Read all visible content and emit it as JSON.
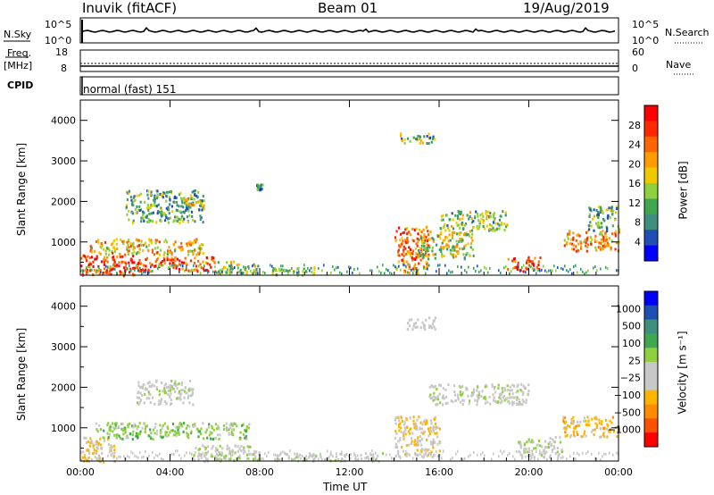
{
  "header": {
    "station": "Inuvik (fitACF)",
    "beam": "Beam 01",
    "date": "19/Aug/2019"
  },
  "nsky_panel": {
    "left_label": "N.Sky",
    "right_label": "N.Search",
    "left_ticks": [
      "10^5",
      "10^0"
    ],
    "right_ticks": [
      "10^5",
      "10^0"
    ]
  },
  "freq_panel": {
    "left_label_1": "Freq.",
    "left_label_2": "[MHz]",
    "right_label": "Nave",
    "left_ticks": [
      "18",
      "8"
    ],
    "right_ticks": [
      "60",
      "0"
    ]
  },
  "cpid_panel": {
    "label": "CPID",
    "mode": "normal (fast) 151"
  },
  "colors": {
    "axis": "#000000",
    "power_scale": [
      "#0000ff",
      "#1f4fb5",
      "#3f8f7f",
      "#3fa74f",
      "#8fd03f",
      "#f0c800",
      "#ff9c00",
      "#ff6400",
      "#ff2800",
      "#ff0000"
    ],
    "velocity_scale": [
      "#ff0000",
      "#ff5000",
      "#ff8c00",
      "#ffb400",
      "#c8c8c8",
      "#c8c8c8",
      "#8fd03f",
      "#3fa74f",
      "#3f8f7f",
      "#1f4fb5",
      "#0000ff"
    ]
  },
  "chart_data": [
    {
      "type": "heatmap",
      "name": "power",
      "ylabel": "Slant Range [km]",
      "yticks": [
        1000,
        2000,
        3000,
        4000
      ],
      "ylim": [
        180,
        4500
      ],
      "xlim": [
        0,
        24
      ],
      "xlabel": "Time UT",
      "xticks": [
        "00:00",
        "04:00",
        "08:00",
        "12:00",
        "16:00",
        "20:00",
        "00:00"
      ],
      "colorbar": {
        "label": "Power [dB]",
        "ticks": [
          "28",
          "24",
          "20",
          "16",
          "12",
          "8",
          "4"
        ],
        "range": [
          0,
          30
        ]
      },
      "blobs": [
        {
          "t": [
            0,
            2.5
          ],
          "r": [
            180,
            700
          ],
          "v": 26
        },
        {
          "t": [
            0.4,
            5.5
          ],
          "r": [
            700,
            1100
          ],
          "v": 18
        },
        {
          "t": [
            2.5,
            6.0
          ],
          "r": [
            300,
            650
          ],
          "v": 24
        },
        {
          "t": [
            6.0,
            8.0
          ],
          "r": [
            250,
            550
          ],
          "v": 14
        },
        {
          "t": [
            2.0,
            5.5
          ],
          "r": [
            1500,
            2300
          ],
          "v": 10
        },
        {
          "t": [
            4.5,
            5.5
          ],
          "r": [
            1900,
            2100
          ],
          "v": 16
        },
        {
          "t": [
            7.8,
            8.1
          ],
          "r": [
            2300,
            2450
          ],
          "v": 8
        },
        {
          "t": [
            8.5,
            10.5
          ],
          "r": [
            200,
            400
          ],
          "v": 12
        },
        {
          "t": [
            14.0,
            15.5
          ],
          "r": [
            250,
            1400
          ],
          "v": 22
        },
        {
          "t": [
            15.0,
            17.5
          ],
          "r": [
            600,
            1300
          ],
          "v": 14
        },
        {
          "t": [
            16.0,
            19.0
          ],
          "r": [
            1300,
            1800
          ],
          "v": 12
        },
        {
          "t": [
            14.2,
            15.8
          ],
          "r": [
            3450,
            3700
          ],
          "v": 12
        },
        {
          "t": [
            19.0,
            20.5
          ],
          "r": [
            300,
            650
          ],
          "v": 26
        },
        {
          "t": [
            21.5,
            24.0
          ],
          "r": [
            800,
            1300
          ],
          "v": 20
        },
        {
          "t": [
            22.5,
            24.0
          ],
          "r": [
            1300,
            1900
          ],
          "v": 10
        }
      ]
    },
    {
      "type": "heatmap",
      "name": "velocity",
      "ylabel": "Slant Range [km]",
      "yticks": [
        1000,
        2000,
        3000,
        4000
      ],
      "ylim": [
        180,
        4500
      ],
      "xlim": [
        0,
        24
      ],
      "xlabel": "Time UT",
      "xticks": [
        "00:00",
        "04:00",
        "08:00",
        "12:00",
        "16:00",
        "20:00",
        "00:00"
      ],
      "colorbar": {
        "label": "Velocity [m s⁻¹]",
        "ticks": [
          "1000",
          "500",
          "100",
          "25",
          "−25",
          "−100",
          "−500",
          "−1000"
        ],
        "range": [
          -1200,
          1200
        ]
      },
      "blobs": [
        {
          "t": [
            0,
            1.5
          ],
          "r": [
            180,
            800
          ],
          "v": -300
        },
        {
          "t": [
            0.5,
            7.5
          ],
          "r": [
            750,
            1150
          ],
          "v": 200
        },
        {
          "t": [
            2.5,
            5.0
          ],
          "r": [
            1600,
            2200
          ],
          "v": 0
        },
        {
          "t": [
            5.0,
            8.0
          ],
          "r": [
            200,
            600
          ],
          "v": 50
        },
        {
          "t": [
            8.5,
            13.5
          ],
          "r": [
            200,
            400
          ],
          "v": 0
        },
        {
          "t": [
            14.0,
            16.0
          ],
          "r": [
            300,
            1300
          ],
          "v": -300
        },
        {
          "t": [
            15.5,
            20.0
          ],
          "r": [
            1600,
            2100
          ],
          "v": 0
        },
        {
          "t": [
            19.5,
            21.5
          ],
          "r": [
            300,
            800
          ],
          "v": 0
        },
        {
          "t": [
            21.5,
            24.0
          ],
          "r": [
            800,
            1300
          ],
          "v": -400
        },
        {
          "t": [
            14.5,
            15.8
          ],
          "r": [
            3450,
            3750
          ],
          "v": -150
        }
      ]
    }
  ]
}
